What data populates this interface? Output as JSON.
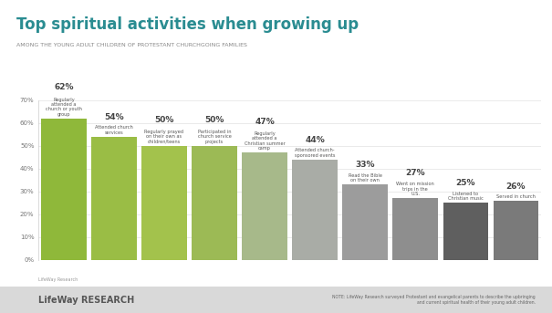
{
  "chart_data": {
    "type": "bar",
    "title": "Top spiritual activities when growing up",
    "subtitle": "AMONG THE YOUNG ADULT CHILDREN OF PROTESTANT CHURCHGOING FAMILIES",
    "categories": [
      "Regularly attended a church or youth group",
      "Attended church services",
      "Regularly prayed on their own as children/teens",
      "Participated in church service projects",
      "Regularly attended a Christian summer camp",
      "Attended church-sponsored events",
      "Read the Bible on their own",
      "Went on mission trips in the U.S.",
      "Listened to Christian music",
      "Served in church"
    ],
    "values": [
      62,
      54,
      50,
      50,
      47,
      44,
      33,
      27,
      25,
      26
    ],
    "value_labels": [
      "62%",
      "54%",
      "50%",
      "50%",
      "47%",
      "44%",
      "33%",
      "27%",
      "25%",
      "26%"
    ],
    "colors": [
      "#8fb83a",
      "#9abd45",
      "#a3c24c",
      "#9cba55",
      "#a7b98a",
      "#a9aca6",
      "#9c9c9c",
      "#8e8e8e",
      "#5f5f5f",
      "#7a7a7a"
    ],
    "ylim": [
      0,
      70
    ],
    "yticks": [
      {
        "value": 0,
        "label": "0%"
      },
      {
        "value": 10,
        "label": "10%"
      },
      {
        "value": 20,
        "label": "20%"
      },
      {
        "value": 30,
        "label": "30%"
      },
      {
        "value": 40,
        "label": "40%"
      },
      {
        "value": 50,
        "label": "50%"
      },
      {
        "value": 60,
        "label": "60%"
      },
      {
        "value": 70,
        "label": "70%"
      }
    ],
    "grid": true,
    "data_labels": true,
    "source": "LifeWay Research",
    "logo": "LifeWay RESEARCH",
    "note": "NOTE: LifeWay Research surveyed Protestant and evangelical parents to describe the upbringing and current spiritual health of their young adult children."
  }
}
